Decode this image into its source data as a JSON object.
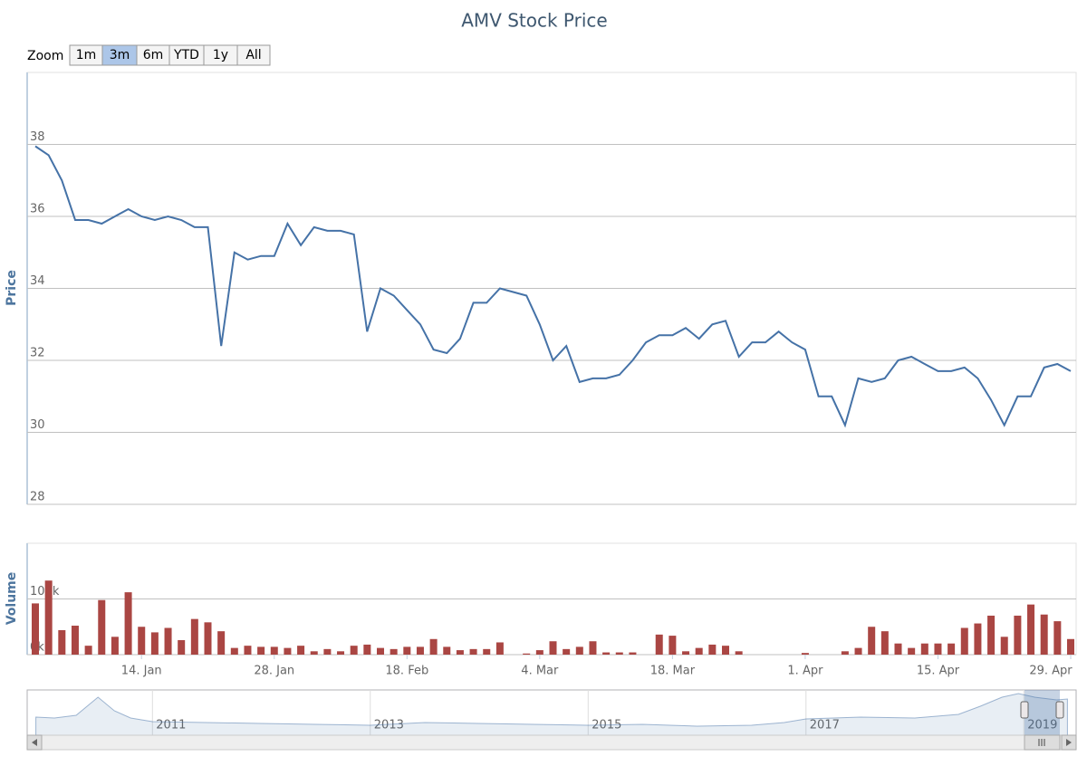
{
  "range_selector": {
    "label": "Zoom",
    "buttons": [
      "1m",
      "3m",
      "6m",
      "YTD",
      "1y",
      "All"
    ],
    "selected": 1
  },
  "chart_data": [
    {
      "type": "line",
      "title": "AMV Stock Price",
      "y_label": "Price",
      "color": "#4572A7",
      "ylim": [
        28,
        40
      ],
      "yticks": [
        28,
        30,
        32,
        34,
        36,
        38
      ],
      "grid": true,
      "values": [
        37.95,
        37.7,
        37.0,
        35.9,
        35.9,
        35.8,
        36.0,
        36.2,
        36.0,
        35.9,
        36.0,
        35.9,
        35.7,
        35.7,
        32.4,
        35.0,
        34.8,
        34.9,
        34.9,
        35.8,
        35.2,
        35.7,
        35.6,
        35.6,
        35.5,
        32.8,
        34.0,
        33.8,
        33.4,
        33.0,
        32.3,
        32.2,
        32.6,
        33.6,
        33.6,
        34.0,
        33.9,
        33.8,
        33.0,
        32.0,
        32.4,
        31.4,
        31.5,
        31.5,
        31.6,
        32.0,
        32.5,
        32.7,
        32.7,
        32.9,
        32.6,
        33.0,
        33.1,
        32.1,
        32.5,
        32.5,
        32.8,
        32.5,
        32.3,
        31.0,
        31.0,
        30.2,
        31.5,
        31.4,
        31.5,
        32.0,
        32.1,
        31.9,
        31.7,
        31.7,
        31.8,
        31.5,
        30.9,
        30.2,
        31.0,
        31.0,
        31.8,
        31.9,
        31.7
      ]
    },
    {
      "type": "bar",
      "y_label": "Volume",
      "color": "#AA4643",
      "ylim": [
        0,
        200000
      ],
      "yticks": [
        {
          "value": 0,
          "label": "0k"
        },
        {
          "value": 100000,
          "label": "100k"
        }
      ],
      "grid": true,
      "categories": [
        null,
        null,
        null,
        null,
        null,
        null,
        null,
        null,
        "14. Jan",
        null,
        null,
        null,
        null,
        null,
        null,
        null,
        null,
        null,
        "28. Jan",
        null,
        null,
        null,
        null,
        null,
        null,
        null,
        null,
        null,
        "18. Feb",
        null,
        null,
        null,
        null,
        null,
        null,
        null,
        null,
        null,
        "4. Mar",
        null,
        null,
        null,
        null,
        null,
        null,
        null,
        null,
        null,
        "18. Mar",
        null,
        null,
        null,
        null,
        null,
        null,
        null,
        null,
        null,
        "1. Apr",
        null,
        null,
        null,
        null,
        null,
        null,
        null,
        null,
        null,
        "15. Apr",
        null,
        null,
        null,
        null,
        null,
        null,
        null,
        null,
        null,
        "29. Apr"
      ],
      "values": [
        92000,
        133000,
        44000,
        52000,
        16000,
        98000,
        32000,
        112000,
        50000,
        40000,
        48000,
        26000,
        64000,
        58000,
        42000,
        12000,
        16000,
        14000,
        14000,
        12000,
        16000,
        6000,
        10000,
        6000,
        16000,
        18000,
        12000,
        10000,
        14000,
        14000,
        28000,
        14000,
        8000,
        10000,
        10000,
        22000,
        0,
        2000,
        8000,
        24000,
        10000,
        14000,
        24000,
        4000,
        4000,
        4000,
        0,
        36000,
        34000,
        6000,
        12000,
        18000,
        16000,
        6000,
        0,
        0,
        0,
        0,
        3000,
        0,
        0,
        6000,
        12000,
        50000,
        42000,
        20000,
        12000,
        20000,
        20000,
        20000,
        48000,
        56000,
        70000,
        32000,
        70000,
        90000,
        72000,
        60000,
        28000
      ]
    },
    {
      "type": "area",
      "color": "#4572A7",
      "xlim": [
        2009.85,
        2019.48
      ],
      "xticks": [
        2011,
        2013,
        2015,
        2017,
        2019
      ],
      "ylim": [
        0,
        40
      ],
      "x": [
        2009.93,
        2010.1,
        2010.3,
        2010.5,
        2010.65,
        2010.8,
        2011.0,
        2011.5,
        2012.0,
        2012.5,
        2013.0,
        2013.5,
        2014.0,
        2014.5,
        2015.0,
        2015.5,
        2016.0,
        2016.5,
        2016.8,
        2017.0,
        2017.5,
        2018.0,
        2018.4,
        2018.6,
        2018.8,
        2018.95,
        2019.1,
        2019.3,
        2019.4
      ],
      "values": [
        16,
        15.2,
        17.6,
        33.6,
        21.6,
        15.2,
        12,
        11.2,
        10.4,
        9.6,
        8.8,
        11.2,
        10.4,
        9.6,
        8.8,
        9.6,
        8,
        8.8,
        11.2,
        14.4,
        16,
        15.2,
        18.4,
        25.6,
        33.6,
        36.8,
        33.6,
        31.2,
        32
      ]
    }
  ]
}
